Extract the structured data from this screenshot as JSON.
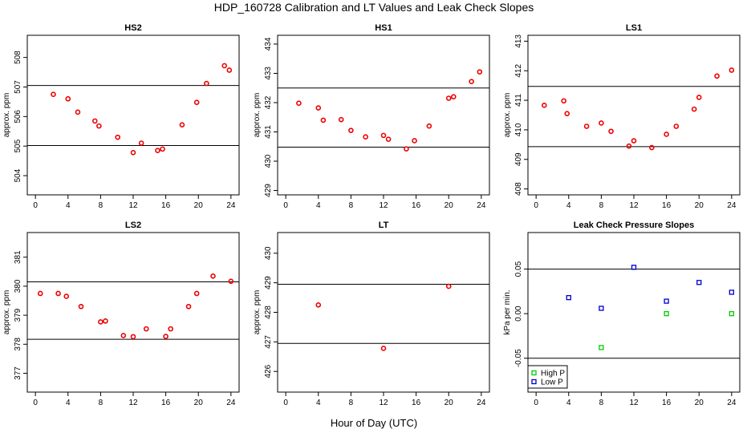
{
  "figure": {
    "title": "HDP_160728  Calibration and LT Values and Leak Check Slopes",
    "xlabel": "Hour of Day (UTC)"
  },
  "chart_data": [
    {
      "type": "scatter",
      "title": "HS2",
      "ylabel": "approx. ppm",
      "xlim": [
        -1,
        25
      ],
      "ylim": [
        503.35,
        508.75
      ],
      "xticks": [
        "0",
        "4",
        "8",
        "12",
        "16",
        "20",
        "24"
      ],
      "yticks": [
        "504",
        "505",
        "506",
        "507",
        "508"
      ],
      "hlines": [
        505.02,
        507.05
      ],
      "series": [
        {
          "color": "#ee0000",
          "x": [
            2.2,
            4.0,
            5.2,
            7.3,
            7.8,
            10.1,
            12.0,
            13.0,
            15.0,
            15.6,
            18.0,
            19.8,
            21.0,
            23.2,
            23.8
          ],
          "y": [
            506.75,
            506.6,
            506.15,
            505.85,
            505.68,
            505.3,
            504.78,
            505.1,
            504.85,
            504.9,
            505.72,
            506.48,
            507.12,
            507.72,
            507.57
          ]
        }
      ]
    },
    {
      "type": "scatter",
      "title": "HS1",
      "ylabel": "approx. ppm",
      "xlim": [
        -1,
        25
      ],
      "ylim": [
        428.85,
        434.3
      ],
      "xticks": [
        "0",
        "4",
        "8",
        "12",
        "16",
        "20",
        "24"
      ],
      "yticks": [
        "429",
        "430",
        "431",
        "432",
        "433",
        "434"
      ],
      "hlines": [
        430.48,
        432.5
      ],
      "series": [
        {
          "color": "#ee0000",
          "x": [
            1.6,
            4.0,
            4.6,
            6.8,
            8.0,
            9.8,
            12.0,
            12.6,
            14.8,
            15.8,
            17.6,
            20.0,
            20.6,
            22.8,
            23.8
          ],
          "y": [
            431.98,
            431.82,
            431.4,
            431.42,
            431.05,
            430.83,
            430.88,
            430.75,
            430.42,
            430.7,
            431.2,
            432.15,
            432.2,
            432.72,
            433.05
          ]
        }
      ]
    },
    {
      "type": "scatter",
      "title": "LS1",
      "ylabel": "approx. ppm",
      "xlim": [
        -1,
        25
      ],
      "ylim": [
        407.8,
        413.2
      ],
      "xticks": [
        "0",
        "4",
        "8",
        "12",
        "16",
        "20",
        "24"
      ],
      "yticks": [
        "408",
        "409",
        "410",
        "411",
        "412",
        "413"
      ],
      "hlines": [
        409.43,
        411.47
      ],
      "series": [
        {
          "color": "#ee0000",
          "x": [
            1.0,
            3.4,
            3.8,
            6.2,
            8.0,
            9.2,
            11.4,
            12.0,
            14.2,
            16.0,
            17.2,
            19.4,
            20.0,
            22.2,
            24.0
          ],
          "y": [
            410.83,
            410.98,
            410.55,
            410.12,
            410.23,
            409.95,
            409.45,
            409.63,
            409.4,
            409.85,
            410.12,
            410.7,
            411.1,
            411.82,
            412.02
          ]
        }
      ]
    },
    {
      "type": "scatter",
      "title": "LS2",
      "ylabel": "approx. ppm",
      "xlim": [
        -1,
        25
      ],
      "ylim": [
        376.35,
        381.85
      ],
      "xticks": [
        "0",
        "4",
        "8",
        "12",
        "16",
        "20",
        "24"
      ],
      "yticks": [
        "377",
        "378",
        "379",
        "380",
        "381"
      ],
      "hlines": [
        378.17,
        380.15
      ],
      "series": [
        {
          "color": "#ee0000",
          "x": [
            0.6,
            2.8,
            3.8,
            5.6,
            8.0,
            8.6,
            10.8,
            12.0,
            13.6,
            16.0,
            16.6,
            18.8,
            19.8,
            21.8,
            24.0
          ],
          "y": [
            379.75,
            379.75,
            379.65,
            379.3,
            378.77,
            378.8,
            378.3,
            378.26,
            378.53,
            378.27,
            378.53,
            379.3,
            379.75,
            380.35,
            380.17
          ]
        }
      ]
    },
    {
      "type": "scatter",
      "title": "LT",
      "ylabel": "approx. ppm",
      "xlim": [
        -1,
        25
      ],
      "ylim": [
        425.3,
        430.7
      ],
      "xticks": [
        "0",
        "4",
        "8",
        "12",
        "16",
        "20",
        "24"
      ],
      "yticks": [
        "426",
        "427",
        "428",
        "429",
        "430"
      ],
      "hlines": [
        426.95,
        428.95
      ],
      "series": [
        {
          "color": "#ee0000",
          "x": [
            4.0,
            12.0,
            20.0
          ],
          "y": [
            428.25,
            426.78,
            428.88
          ]
        }
      ]
    },
    {
      "type": "scatter",
      "title": "Leak Check Pressure Slopes",
      "ylabel": "kPa per min.",
      "xlim": [
        -1,
        25
      ],
      "ylim": [
        -0.088,
        0.091
      ],
      "xticks": [
        "0",
        "4",
        "8",
        "12",
        "16",
        "20",
        "24"
      ],
      "yticks": [
        "-0.05",
        "0.00",
        "0.05"
      ],
      "hlines": [
        -0.05,
        0.05
      ],
      "legend": {
        "position": "bottom-left"
      },
      "series": [
        {
          "name": "High P",
          "color": "#00cc00",
          "x": [
            8.0,
            16.0,
            24.0
          ],
          "y": [
            -0.038,
            0.0,
            0.0
          ]
        },
        {
          "name": "Low P",
          "color": "#0000cc",
          "x": [
            4.0,
            8.0,
            12.0,
            16.0,
            20.0,
            24.0
          ],
          "y": [
            0.018,
            0.006,
            0.052,
            0.014,
            0.035,
            0.024
          ]
        }
      ]
    }
  ]
}
